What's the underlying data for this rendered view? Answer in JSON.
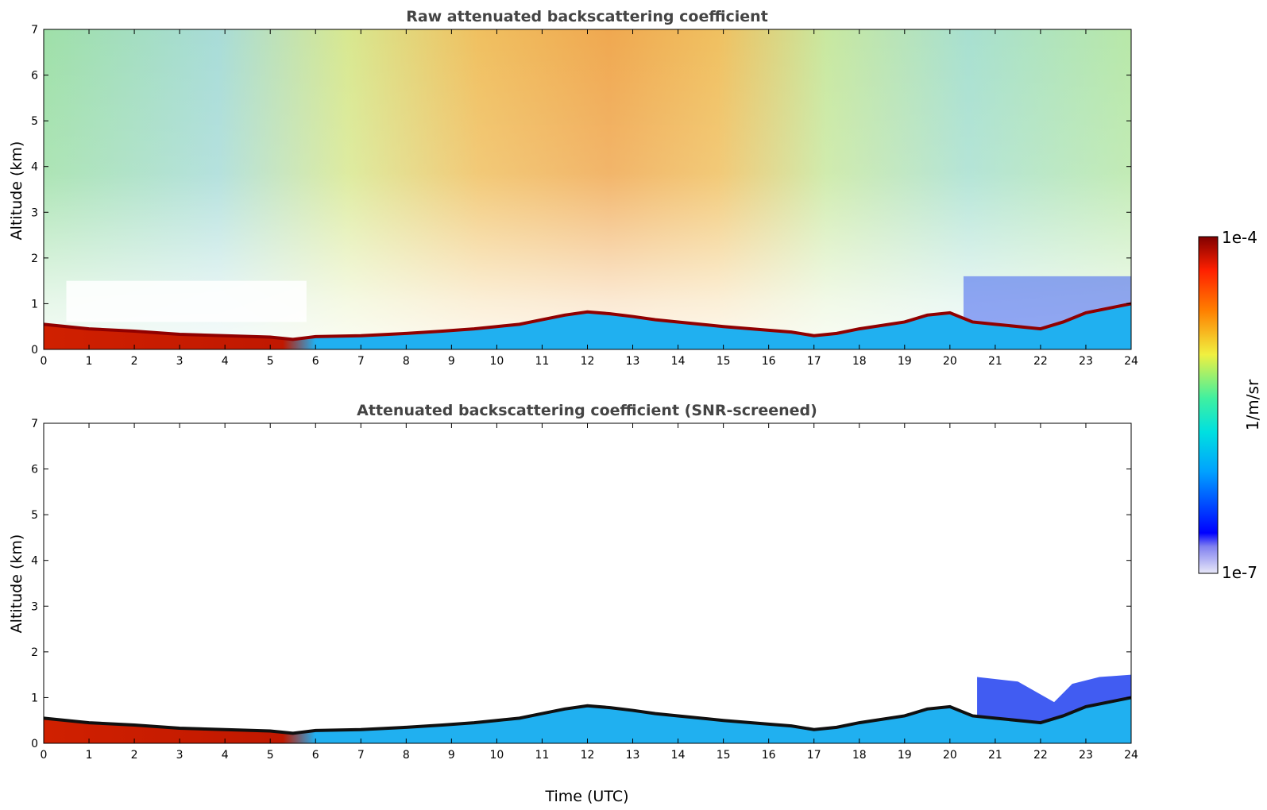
{
  "chart_data": [
    {
      "type": "heatmap",
      "title": "Raw attenuated backscattering coefficient",
      "ylabel": "Altitude (km)",
      "xlabel": "",
      "xlim": [
        0,
        24
      ],
      "ylim": [
        0,
        7
      ],
      "xticks": [
        "0",
        "1",
        "2",
        "3",
        "4",
        "5",
        "6",
        "7",
        "8",
        "9",
        "10",
        "11",
        "12",
        "13",
        "14",
        "15",
        "16",
        "17",
        "18",
        "19",
        "20",
        "21",
        "22",
        "23",
        "24"
      ],
      "yticks": [
        "0",
        "1",
        "2",
        "3",
        "4",
        "5",
        "6",
        "7"
      ],
      "boundary_layer_top_km": {
        "time_utc": [
          0,
          1,
          2,
          3,
          4,
          5,
          5.5,
          6,
          7,
          8,
          8.8,
          9.5,
          10,
          10.5,
          11,
          11.5,
          12,
          12.5,
          13,
          13.5,
          14,
          15,
          16,
          16.5,
          17,
          17.5,
          18,
          19,
          19.5,
          20,
          20.5,
          21,
          22,
          22.5,
          23,
          23.5,
          24
        ],
        "altitude_km": [
          0.55,
          0.45,
          0.4,
          0.33,
          0.3,
          0.27,
          0.22,
          0.28,
          0.3,
          0.35,
          0.4,
          0.45,
          0.5,
          0.55,
          0.65,
          0.75,
          0.82,
          0.78,
          0.72,
          0.65,
          0.6,
          0.5,
          0.42,
          0.38,
          0.3,
          0.35,
          0.45,
          0.6,
          0.75,
          0.8,
          0.6,
          0.55,
          0.45,
          0.6,
          0.8,
          0.9,
          1.0
        ]
      }
    },
    {
      "type": "heatmap",
      "title": "Attenuated backscattering coefficient (SNR-screened)",
      "ylabel": "Altitude (km)",
      "xlabel": "Time (UTC)",
      "xlim": [
        0,
        24
      ],
      "ylim": [
        0,
        7
      ],
      "xticks": [
        "0",
        "1",
        "2",
        "3",
        "4",
        "5",
        "6",
        "7",
        "8",
        "9",
        "10",
        "11",
        "12",
        "13",
        "14",
        "15",
        "16",
        "17",
        "18",
        "19",
        "20",
        "21",
        "22",
        "23",
        "24"
      ],
      "yticks": [
        "0",
        "1",
        "2",
        "3",
        "4",
        "5",
        "6",
        "7"
      ]
    }
  ],
  "colorbar": {
    "max_label": "1e-4",
    "min_label": "1e-7",
    "unit_label": "1/m/sr",
    "scale": "log",
    "range": [
      1e-07,
      0.0001
    ],
    "colors": [
      "#e8e8f8",
      "#0000ff",
      "#00c8ff",
      "#00e8b0",
      "#f0f040",
      "#ff8000",
      "#ff2000",
      "#800000"
    ]
  }
}
